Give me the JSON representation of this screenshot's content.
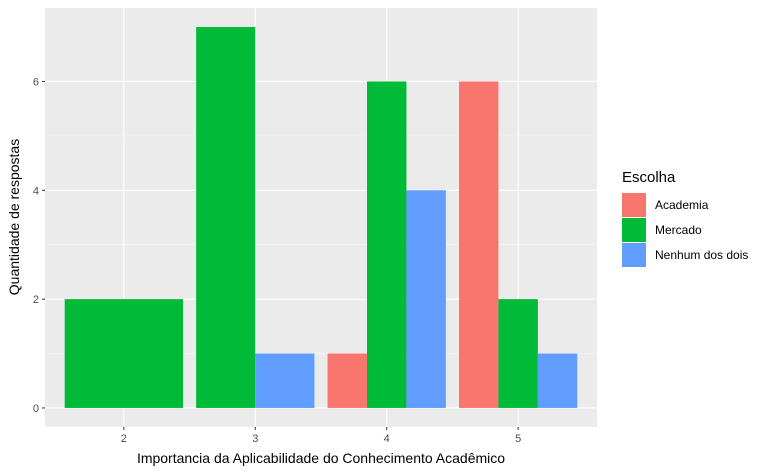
{
  "chart_data": {
    "type": "bar",
    "position": "dodge",
    "title": "",
    "xlabel": "Importancia da Aplicabilidade do Conhecimento Acadêmico",
    "ylabel": "Quantidade de respostas",
    "categories": [
      "2",
      "3",
      "4",
      "5"
    ],
    "y_ticks": [
      "0",
      "2",
      "4",
      "6"
    ],
    "ylim": [
      -0.35,
      7.35
    ],
    "grid": true,
    "legend_title": "Escolha",
    "legend_position": "right",
    "series": [
      {
        "name": "Academia",
        "color": "#F8766D",
        "values": [
          null,
          null,
          1,
          6
        ]
      },
      {
        "name": "Mercado",
        "color": "#00BA38",
        "values": [
          2,
          7,
          6,
          2
        ]
      },
      {
        "name": "Nenhum dos dois",
        "color": "#619CFF",
        "values": [
          null,
          1,
          4,
          1
        ]
      }
    ]
  }
}
